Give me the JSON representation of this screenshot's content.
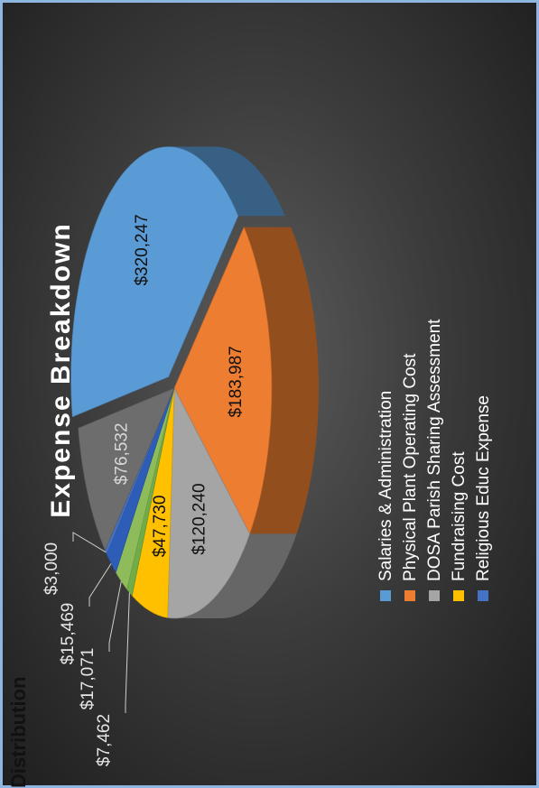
{
  "page_heading": "Distribution",
  "chart_data": {
    "type": "pie",
    "title": "Expense Breakdown",
    "slices": [
      {
        "label": "Salaries & Administration",
        "value": 320247,
        "value_label": "$320,247",
        "color": "#5b9bd5"
      },
      {
        "label": "Physical Plant Operating Cost",
        "value": 183987,
        "value_label": "$183,987",
        "color": "#ed7d31"
      },
      {
        "label": "DOSA Parish Sharing Assessment",
        "value": 120240,
        "value_label": "$120,240",
        "color": "#a5a5a5"
      },
      {
        "label": "Fundraising Cost",
        "value": 47730,
        "value_label": "$47,730",
        "color": "#ffc000"
      },
      {
        "label": "",
        "value": 7462,
        "value_label": "$7,462",
        "color": "#70ad47"
      },
      {
        "label": "",
        "value": 17071,
        "value_label": "$17,071",
        "color": "#8fbc5a"
      },
      {
        "label": "",
        "value": 15469,
        "value_label": "$15,469",
        "color": "#2e5db8"
      },
      {
        "label": "Religious Educ Expense",
        "value": 3000,
        "value_label": "$3,000",
        "color": "#4472c4"
      },
      {
        "label": "",
        "value": 76532,
        "value_label": "$76,532",
        "color": "#6d6d6d"
      }
    ],
    "legend": {
      "entries": [
        {
          "label": "Salaries & Administration",
          "color": "#5b9bd5"
        },
        {
          "label": "Physical Plant Operating Cost",
          "color": "#ed7d31"
        },
        {
          "label": "DOSA Parish Sharing Assessment",
          "color": "#a5a5a5"
        },
        {
          "label": "Fundraising Cost",
          "color": "#ffc000"
        },
        {
          "label": "Religious Educ Expense",
          "color": "#4472c4"
        }
      ],
      "placement": "bottom"
    },
    "style": "3d-exploded-pie",
    "orientation": "rotated-90-ccw"
  }
}
